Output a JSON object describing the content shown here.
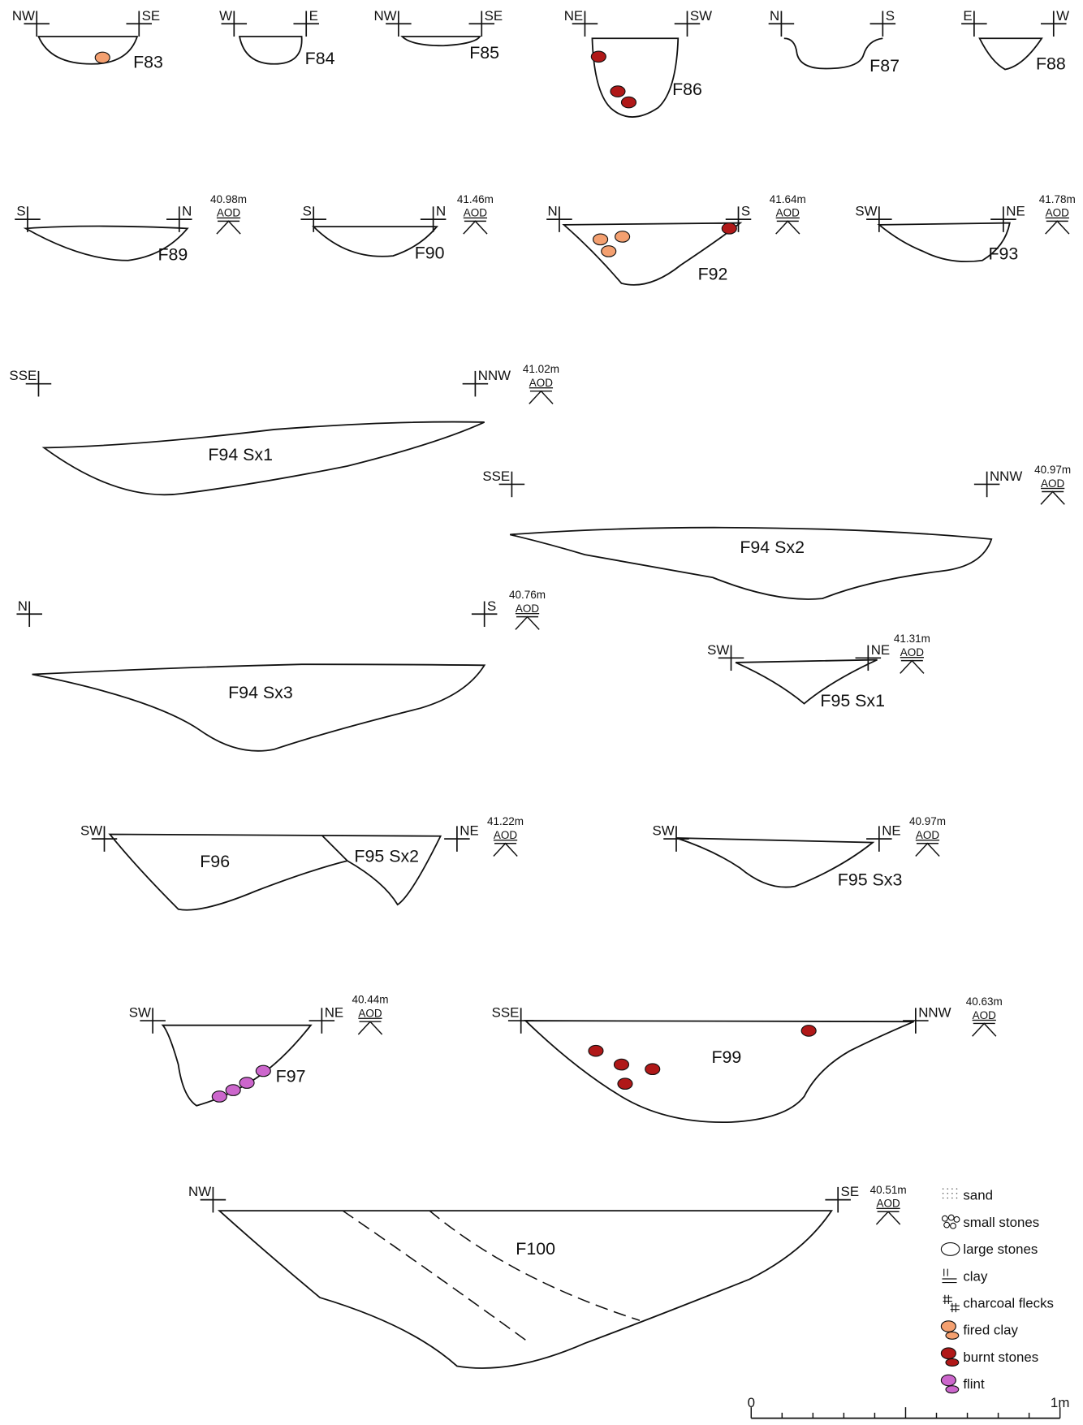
{
  "sections": [
    {
      "labels": [
        "F83"
      ],
      "left": "NW",
      "right": "SE"
    },
    {
      "labels": [
        "F84"
      ],
      "left": "W",
      "right": "E"
    },
    {
      "labels": [
        "F85"
      ],
      "left": "NW",
      "right": "SE"
    },
    {
      "labels": [
        "F86"
      ],
      "left": "NE",
      "right": "SW"
    },
    {
      "labels": [
        "F87"
      ],
      "left": "N",
      "right": "S"
    },
    {
      "labels": [
        "F88"
      ],
      "left": "E",
      "right": "W"
    },
    {
      "labels": [
        "F89"
      ],
      "left": "S",
      "right": "N",
      "elevation": "40.98m",
      "datum": "AOD"
    },
    {
      "labels": [
        "F90"
      ],
      "left": "S",
      "right": "N",
      "elevation": "41.46m",
      "datum": "AOD"
    },
    {
      "labels": [
        "F92"
      ],
      "left": "N",
      "right": "S",
      "elevation": "41.64m",
      "datum": "AOD"
    },
    {
      "labels": [
        "F93"
      ],
      "left": "SW",
      "right": "NE",
      "elevation": "41.78m",
      "datum": "AOD"
    },
    {
      "labels": [
        "F94 Sx1"
      ],
      "left": "SSE",
      "right": "NNW",
      "elevation": "41.02m",
      "datum": "AOD"
    },
    {
      "labels": [
        "F94 Sx2"
      ],
      "left": "SSE",
      "right": "NNW",
      "elevation": "40.97m",
      "datum": "AOD"
    },
    {
      "labels": [
        "F94 Sx3"
      ],
      "left": "N",
      "right": "S",
      "elevation": "40.76m",
      "datum": "AOD"
    },
    {
      "labels": [
        "F95 Sx1"
      ],
      "left": "SW",
      "right": "NE",
      "elevation": "41.31m",
      "datum": "AOD"
    },
    {
      "labels": [
        "F96",
        "F95 Sx2"
      ],
      "left": "SW",
      "right": "NE",
      "elevation": "41.22m",
      "datum": "AOD"
    },
    {
      "labels": [
        "F95 Sx3"
      ],
      "left": "SW",
      "right": "NE",
      "elevation": "40.97m",
      "datum": "AOD"
    },
    {
      "labels": [
        "F97"
      ],
      "left": "SW",
      "right": "NE",
      "elevation": "40.44m",
      "datum": "AOD"
    },
    {
      "labels": [
        "F99"
      ],
      "left": "SSE",
      "right": "NNW",
      "elevation": "40.63m",
      "datum": "AOD"
    },
    {
      "labels": [
        "F100"
      ],
      "left": "NW",
      "right": "SE",
      "elevation": "40.51m",
      "datum": "AOD"
    }
  ],
  "legend": [
    "sand",
    "small stones",
    "large stones",
    "clay",
    "charcoal flecks",
    "fired clay",
    "burnt stones",
    "flint"
  ],
  "scale": {
    "start": "0",
    "end": "1m"
  }
}
